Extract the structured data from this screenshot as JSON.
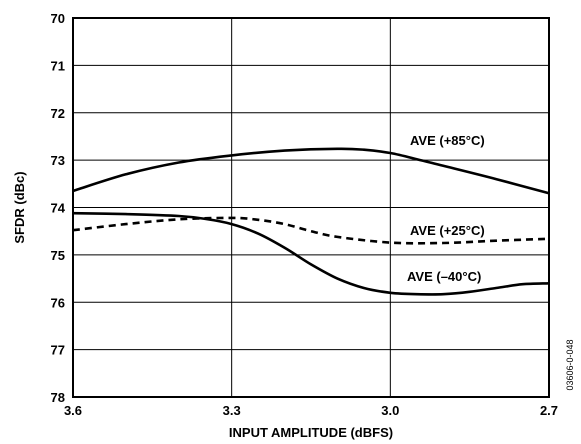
{
  "chart_data": {
    "type": "line",
    "title": "",
    "xlabel": "INPUT AMPLITUDE (dBFS)",
    "ylabel": "SFDR (dBc)",
    "xlim": [
      3.6,
      2.7
    ],
    "ylim": [
      70,
      78
    ],
    "y_inverted": true,
    "grid": true,
    "x_ticks": [
      3.6,
      3.3,
      3.0,
      2.7
    ],
    "x_tick_labels": [
      "3.6",
      "3.3",
      "3.0",
      "2.7"
    ],
    "y_ticks": [
      70,
      71,
      72,
      73,
      74,
      75,
      76,
      77,
      78
    ],
    "y_tick_labels": [
      "70",
      "71",
      "72",
      "73",
      "74",
      "75",
      "76",
      "77",
      "78"
    ],
    "figure_id": "03606-0-048",
    "series": [
      {
        "name": "AVE (+85°C)",
        "style": "solid",
        "x": [
          3.6,
          3.5,
          3.4,
          3.3,
          3.2,
          3.1,
          3.05,
          3.0,
          2.95,
          2.9,
          2.8,
          2.7
        ],
        "y": [
          73.65,
          73.3,
          73.05,
          72.9,
          72.8,
          72.76,
          72.78,
          72.85,
          72.98,
          73.12,
          73.4,
          73.7
        ]
      },
      {
        "name": "AVE (+25°C)",
        "style": "dashed",
        "x": [
          3.6,
          3.5,
          3.4,
          3.3,
          3.25,
          3.2,
          3.15,
          3.1,
          3.0,
          2.9,
          2.8,
          2.7
        ],
        "y": [
          74.48,
          74.35,
          74.25,
          74.22,
          74.26,
          74.35,
          74.5,
          74.62,
          74.74,
          74.75,
          74.7,
          74.66
        ]
      },
      {
        "name": "AVE (–40°C)",
        "style": "solid",
        "x": [
          3.6,
          3.5,
          3.4,
          3.35,
          3.3,
          3.25,
          3.2,
          3.15,
          3.1,
          3.05,
          3.0,
          2.95,
          2.9,
          2.85,
          2.8,
          2.75,
          2.7
        ],
        "y": [
          74.12,
          74.14,
          74.18,
          74.24,
          74.35,
          74.55,
          74.85,
          75.2,
          75.5,
          75.7,
          75.8,
          75.83,
          75.83,
          75.78,
          75.7,
          75.62,
          75.6
        ]
      }
    ]
  }
}
